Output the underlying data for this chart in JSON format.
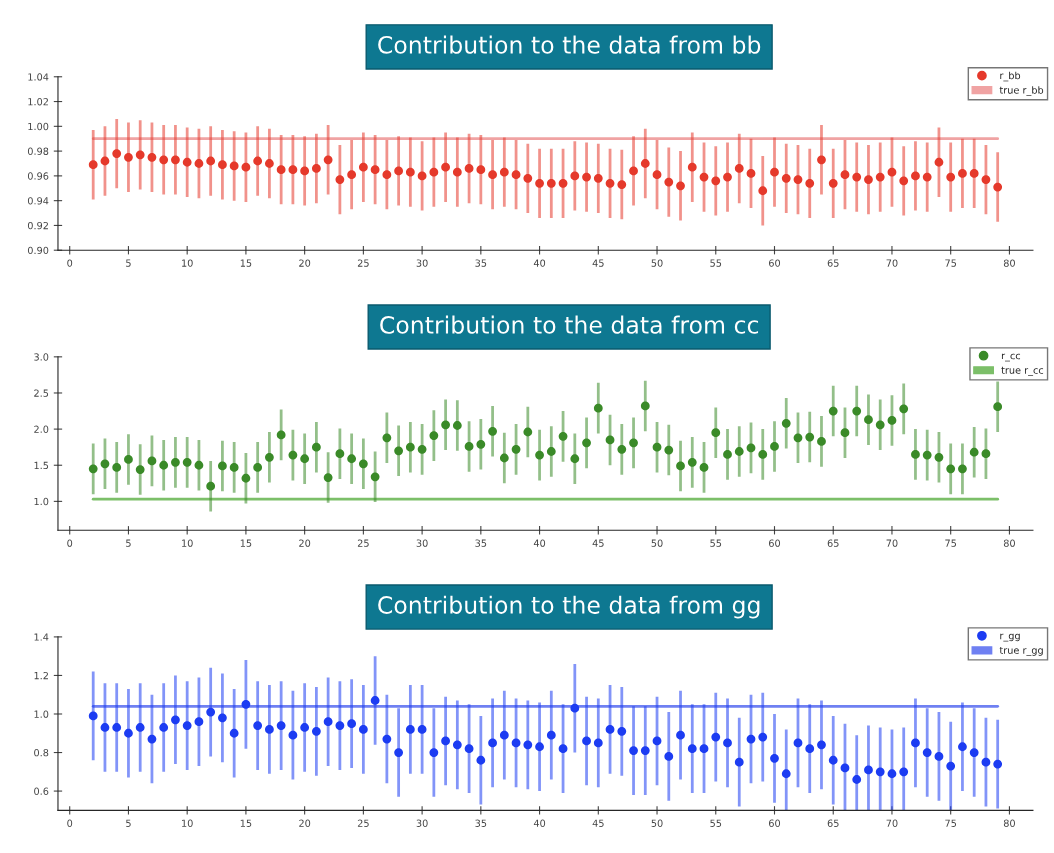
{
  "chart_data": [
    {
      "type": "scatter",
      "title": "Contribution to the data from bb",
      "xlim": [
        -1,
        82
      ],
      "xticks": [
        0,
        5,
        10,
        15,
        20,
        25,
        30,
        35,
        40,
        45,
        50,
        55,
        60,
        65,
        70,
        75,
        80
      ],
      "ylim": [
        0.9,
        1.04
      ],
      "yticks": [
        {
          "value": 0.9,
          "label": "0.90"
        },
        {
          "value": 0.92,
          "label": "0.92"
        },
        {
          "value": 0.94,
          "label": "0.94"
        },
        {
          "value": 0.96,
          "label": "0.96"
        },
        {
          "value": 0.98,
          "label": "0.98"
        },
        {
          "value": 1.0,
          "label": "1.00"
        },
        {
          "value": 1.02,
          "label": "1.02"
        },
        {
          "value": 1.04,
          "label": "1.04"
        }
      ],
      "legend": "top right",
      "grid": false,
      "marker": "circle",
      "series": [
        {
          "name": "r_bb",
          "color": "#e5392b",
          "x": [
            2,
            3,
            4,
            5,
            6,
            7,
            8,
            9,
            10,
            11,
            12,
            13,
            14,
            15,
            16,
            17,
            18,
            19,
            20,
            21,
            22,
            23,
            24,
            25,
            26,
            27,
            28,
            29,
            30,
            31,
            32,
            33,
            34,
            35,
            36,
            37,
            38,
            39,
            40,
            41,
            42,
            43,
            44,
            45,
            46,
            47,
            48,
            49,
            50,
            51,
            52,
            53,
            54,
            55,
            56,
            57,
            58,
            59,
            60,
            61,
            62,
            63,
            64,
            65,
            66,
            67,
            68,
            69,
            70,
            71,
            72,
            73,
            74,
            75,
            76,
            77,
            78,
            79
          ],
          "values": [
            0.969,
            0.972,
            0.978,
            0.975,
            0.977,
            0.975,
            0.973,
            0.973,
            0.971,
            0.97,
            0.972,
            0.969,
            0.968,
            0.967,
            0.972,
            0.97,
            0.965,
            0.965,
            0.964,
            0.966,
            0.973,
            0.957,
            0.961,
            0.967,
            0.965,
            0.961,
            0.964,
            0.963,
            0.96,
            0.963,
            0.967,
            0.963,
            0.966,
            0.965,
            0.961,
            0.963,
            0.961,
            0.958,
            0.954,
            0.954,
            0.954,
            0.96,
            0.959,
            0.958,
            0.954,
            0.953,
            0.964,
            0.97,
            0.961,
            0.955,
            0.952,
            0.967,
            0.959,
            0.956,
            0.959,
            0.966,
            0.962,
            0.948,
            0.963,
            0.958,
            0.957,
            0.954,
            0.973,
            0.954,
            0.961,
            0.959,
            0.957,
            0.959,
            0.963,
            0.956,
            0.96,
            0.959,
            0.971,
            0.959,
            0.962,
            0.962,
            0.957,
            0.951
          ],
          "errors": [
            0.028,
            0.028,
            0.028,
            0.028,
            0.028,
            0.028,
            0.028,
            0.028,
            0.028,
            0.028,
            0.028,
            0.028,
            0.028,
            0.028,
            0.028,
            0.028,
            0.028,
            0.028,
            0.028,
            0.028,
            0.028,
            0.028,
            0.028,
            0.028,
            0.028,
            0.028,
            0.028,
            0.028,
            0.028,
            0.028,
            0.028,
            0.028,
            0.028,
            0.028,
            0.028,
            0.028,
            0.028,
            0.028,
            0.028,
            0.028,
            0.028,
            0.028,
            0.028,
            0.028,
            0.028,
            0.028,
            0.028,
            0.028,
            0.028,
            0.028,
            0.028,
            0.028,
            0.028,
            0.028,
            0.028,
            0.028,
            0.028,
            0.028,
            0.028,
            0.028,
            0.028,
            0.028,
            0.028,
            0.028,
            0.028,
            0.028,
            0.028,
            0.028,
            0.028,
            0.028,
            0.028,
            0.028,
            0.028,
            0.028,
            0.028,
            0.028,
            0.028,
            0.028
          ]
        },
        {
          "name": "true r_bb",
          "type": "line",
          "marker": "none",
          "color": "#f0a3a3",
          "x": [
            2,
            79
          ],
          "values": [
            0.99,
            0.99
          ]
        }
      ]
    },
    {
      "type": "scatter",
      "title": "Contribution to the data from cc",
      "xlim": [
        -1,
        82
      ],
      "xticks": [
        0,
        5,
        10,
        15,
        20,
        25,
        30,
        35,
        40,
        45,
        50,
        55,
        60,
        65,
        70,
        75,
        80
      ],
      "ylim": [
        0.6,
        3.0
      ],
      "yticks": [
        {
          "value": 1.0,
          "label": "1.0"
        },
        {
          "value": 1.5,
          "label": "1.5"
        },
        {
          "value": 2.0,
          "label": "2.0"
        },
        {
          "value": 2.5,
          "label": "2.5"
        },
        {
          "value": 3.0,
          "label": "3.0"
        }
      ],
      "legend": "top right",
      "grid": false,
      "marker": "circle",
      "series": [
        {
          "name": "r_cc",
          "color": "#3a8a28",
          "x": [
            2,
            3,
            4,
            5,
            6,
            7,
            8,
            9,
            10,
            11,
            12,
            13,
            14,
            15,
            16,
            17,
            18,
            19,
            20,
            21,
            22,
            23,
            24,
            25,
            26,
            27,
            28,
            29,
            30,
            31,
            32,
            33,
            34,
            35,
            36,
            37,
            38,
            39,
            40,
            41,
            42,
            43,
            44,
            45,
            46,
            47,
            48,
            49,
            50,
            51,
            52,
            53,
            54,
            55,
            56,
            57,
            58,
            59,
            60,
            61,
            62,
            63,
            64,
            65,
            66,
            67,
            68,
            69,
            70,
            71,
            72,
            73,
            74,
            75,
            76,
            77,
            78,
            79
          ],
          "values": [
            1.45,
            1.52,
            1.47,
            1.58,
            1.44,
            1.56,
            1.5,
            1.54,
            1.54,
            1.5,
            1.21,
            1.49,
            1.47,
            1.32,
            1.47,
            1.61,
            1.92,
            1.64,
            1.59,
            1.75,
            1.33,
            1.66,
            1.59,
            1.52,
            1.34,
            1.88,
            1.7,
            1.75,
            1.72,
            1.91,
            2.06,
            2.05,
            1.76,
            1.79,
            1.97,
            1.6,
            1.72,
            1.96,
            1.64,
            1.69,
            1.9,
            1.59,
            1.81,
            2.29,
            1.85,
            1.72,
            1.81,
            2.32,
            1.75,
            1.71,
            1.49,
            1.54,
            1.47,
            1.95,
            1.65,
            1.69,
            1.74,
            1.65,
            1.76,
            2.08,
            1.88,
            1.89,
            1.83,
            2.25,
            1.95,
            2.25,
            2.13,
            2.06,
            2.12,
            2.28,
            1.65,
            1.64,
            1.61,
            1.45,
            1.45,
            1.68,
            1.66,
            2.31
          ],
          "errors": [
            0.35,
            0.35,
            0.35,
            0.35,
            0.35,
            0.35,
            0.35,
            0.35,
            0.35,
            0.35,
            0.35,
            0.35,
            0.35,
            0.35,
            0.35,
            0.35,
            0.35,
            0.35,
            0.35,
            0.35,
            0.35,
            0.35,
            0.35,
            0.35,
            0.35,
            0.35,
            0.35,
            0.35,
            0.35,
            0.35,
            0.35,
            0.35,
            0.35,
            0.35,
            0.35,
            0.35,
            0.35,
            0.35,
            0.35,
            0.35,
            0.35,
            0.35,
            0.35,
            0.35,
            0.35,
            0.35,
            0.35,
            0.35,
            0.35,
            0.35,
            0.35,
            0.35,
            0.35,
            0.35,
            0.35,
            0.35,
            0.35,
            0.35,
            0.35,
            0.35,
            0.35,
            0.35,
            0.35,
            0.35,
            0.35,
            0.35,
            0.35,
            0.35,
            0.35,
            0.35,
            0.35,
            0.35,
            0.35,
            0.35,
            0.35,
            0.35,
            0.35,
            0.35
          ]
        },
        {
          "name": "true r_cc",
          "type": "line",
          "marker": "none",
          "color": "#7cbf69",
          "x": [
            2,
            79
          ],
          "values": [
            1.03,
            1.03
          ]
        }
      ]
    },
    {
      "type": "scatter",
      "title": "Contribution to the data from gg",
      "xlim": [
        -1,
        82
      ],
      "xticks": [
        0,
        5,
        10,
        15,
        20,
        25,
        30,
        35,
        40,
        45,
        50,
        55,
        60,
        65,
        70,
        75,
        80
      ],
      "ylim": [
        0.5,
        1.4
      ],
      "yticks": [
        {
          "value": 0.6,
          "label": "0.6"
        },
        {
          "value": 0.8,
          "label": "0.8"
        },
        {
          "value": 1.0,
          "label": "1.0"
        },
        {
          "value": 1.2,
          "label": "1.2"
        },
        {
          "value": 1.4,
          "label": "1.4"
        }
      ],
      "legend": "top right",
      "grid": false,
      "marker": "circle",
      "series": [
        {
          "name": "r_gg",
          "color": "#1c3cf2",
          "x": [
            2,
            3,
            4,
            5,
            6,
            7,
            8,
            9,
            10,
            11,
            12,
            13,
            14,
            15,
            16,
            17,
            18,
            19,
            20,
            21,
            22,
            23,
            24,
            25,
            26,
            27,
            28,
            29,
            30,
            31,
            32,
            33,
            34,
            35,
            36,
            37,
            38,
            39,
            40,
            41,
            42,
            43,
            44,
            45,
            46,
            47,
            48,
            49,
            50,
            51,
            52,
            53,
            54,
            55,
            56,
            57,
            58,
            59,
            60,
            61,
            62,
            63,
            64,
            65,
            66,
            67,
            68,
            69,
            70,
            71,
            72,
            73,
            74,
            75,
            76,
            77,
            78,
            79
          ],
          "values": [
            0.99,
            0.93,
            0.93,
            0.9,
            0.93,
            0.87,
            0.93,
            0.97,
            0.94,
            0.96,
            1.01,
            0.98,
            0.9,
            1.05,
            0.94,
            0.92,
            0.94,
            0.89,
            0.93,
            0.91,
            0.96,
            0.94,
            0.95,
            0.92,
            1.07,
            0.87,
            0.8,
            0.92,
            0.92,
            0.8,
            0.86,
            0.84,
            0.82,
            0.76,
            0.85,
            0.89,
            0.85,
            0.84,
            0.83,
            0.89,
            0.82,
            1.03,
            0.86,
            0.85,
            0.92,
            0.91,
            0.81,
            0.81,
            0.86,
            0.78,
            0.89,
            0.82,
            0.82,
            0.88,
            0.85,
            0.75,
            0.87,
            0.88,
            0.77,
            0.69,
            0.85,
            0.82,
            0.84,
            0.76,
            0.72,
            0.66,
            0.71,
            0.7,
            0.69,
            0.7,
            0.85,
            0.8,
            0.78,
            0.73,
            0.83,
            0.8,
            0.75,
            0.74
          ],
          "errors": [
            0.23,
            0.23,
            0.23,
            0.23,
            0.23,
            0.23,
            0.23,
            0.23,
            0.23,
            0.23,
            0.23,
            0.23,
            0.23,
            0.23,
            0.23,
            0.23,
            0.23,
            0.23,
            0.23,
            0.23,
            0.23,
            0.23,
            0.23,
            0.23,
            0.23,
            0.23,
            0.23,
            0.23,
            0.23,
            0.23,
            0.23,
            0.23,
            0.23,
            0.23,
            0.23,
            0.23,
            0.23,
            0.23,
            0.23,
            0.23,
            0.23,
            0.23,
            0.23,
            0.23,
            0.23,
            0.23,
            0.23,
            0.23,
            0.23,
            0.23,
            0.23,
            0.23,
            0.23,
            0.23,
            0.23,
            0.23,
            0.23,
            0.23,
            0.23,
            0.23,
            0.23,
            0.23,
            0.23,
            0.23,
            0.23,
            0.23,
            0.23,
            0.23,
            0.23,
            0.23,
            0.23,
            0.23,
            0.23,
            0.23,
            0.23,
            0.23,
            0.23,
            0.23
          ]
        },
        {
          "name": "true r_gg",
          "type": "line",
          "marker": "none",
          "color": "#6f80f2",
          "x": [
            2,
            79
          ],
          "values": [
            1.04,
            1.04
          ]
        }
      ]
    }
  ]
}
